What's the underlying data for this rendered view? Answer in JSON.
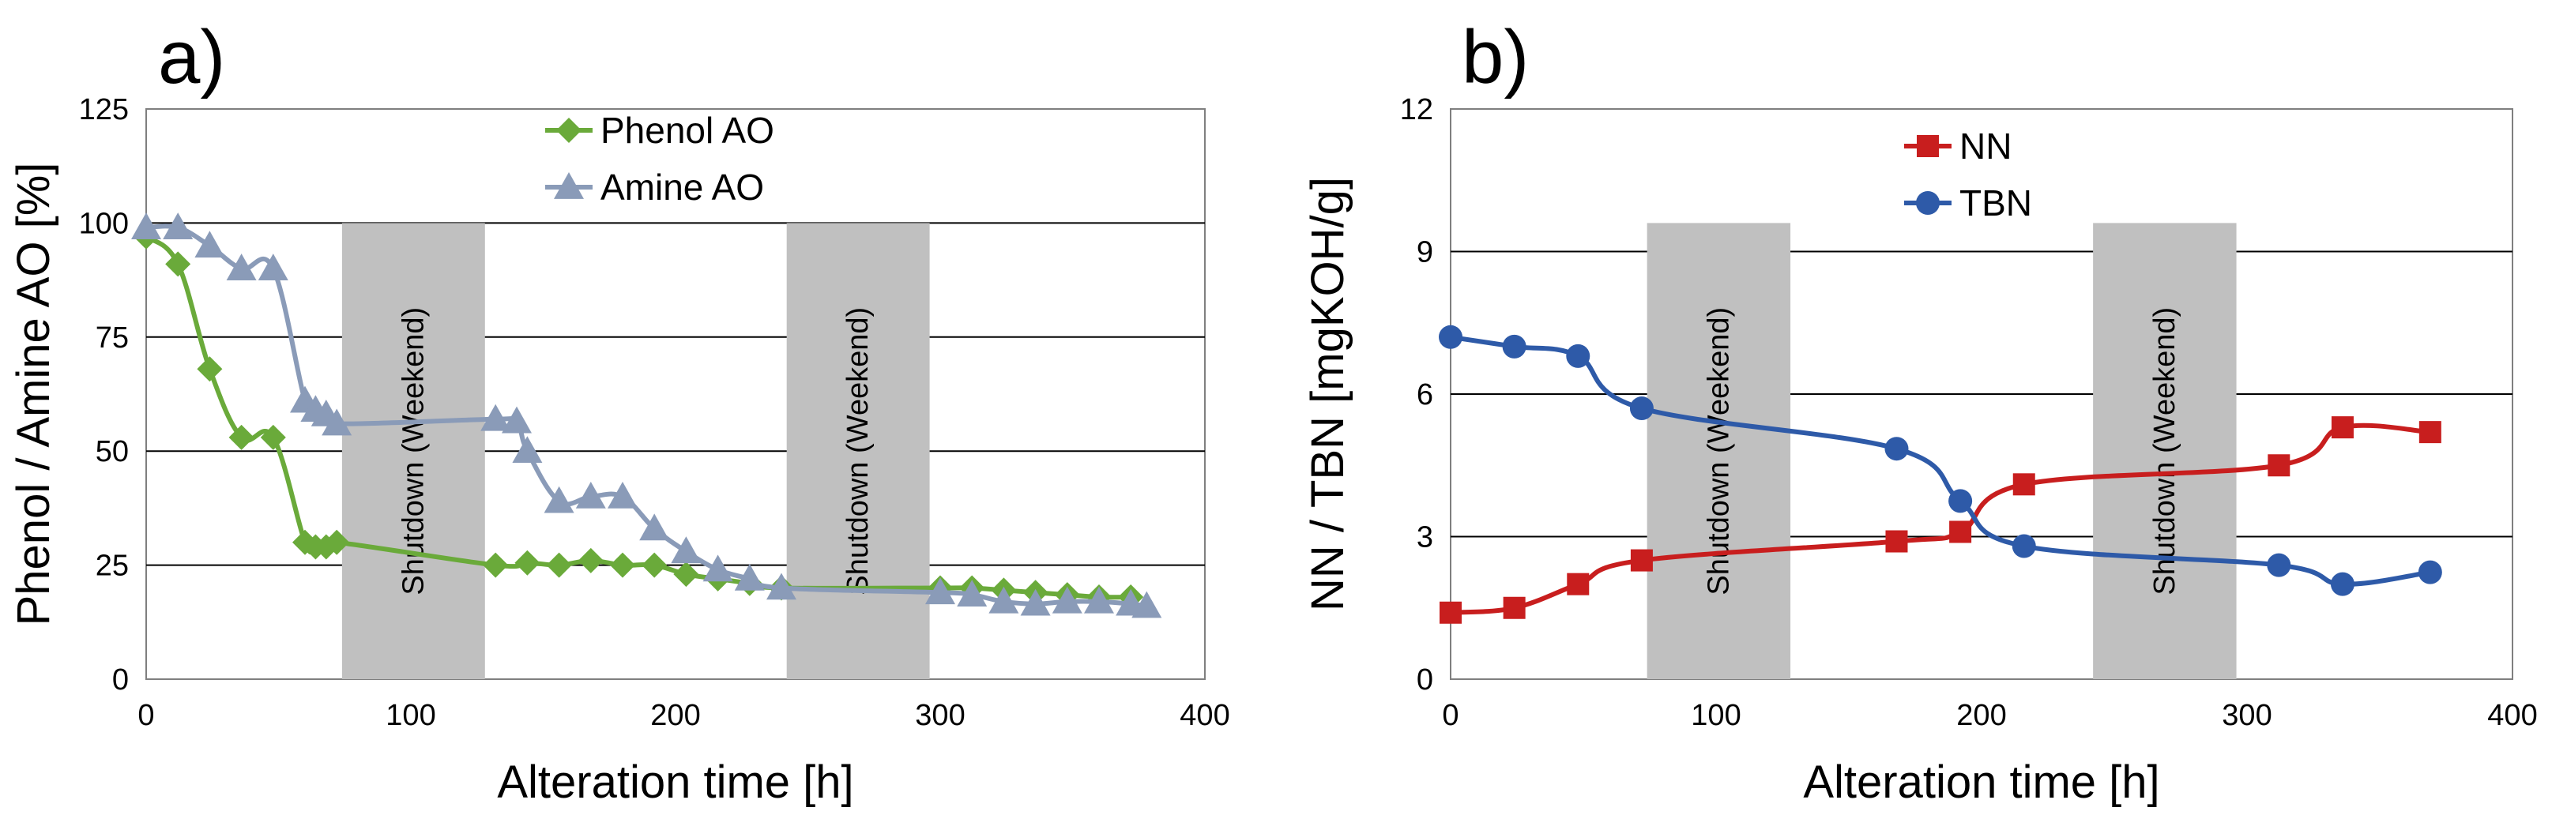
{
  "chart_data": [
    {
      "type": "line",
      "panel_label": "a)",
      "xlabel": "Alteration time [h]",
      "ylabel": "Phenol / Amine AO [%]",
      "xlim": [
        0,
        400
      ],
      "ylim": [
        0,
        125
      ],
      "xticks": [
        "0",
        "100",
        "200",
        "300",
        "400"
      ],
      "yticks": [
        "0",
        "25",
        "50",
        "75",
        "100",
        "125"
      ],
      "grid": "horizontal",
      "legend_position": "top-center",
      "shaded_regions": [
        {
          "x0": 74,
          "x1": 128,
          "label": "Shutdown (Weekend)"
        },
        {
          "x0": 242,
          "x1": 296,
          "label": "Shutdown (Weekend)"
        }
      ],
      "series": [
        {
          "name": "Phenol AO",
          "marker": "diamond",
          "color": "#6aaa3a",
          "x": [
            0,
            12,
            24,
            36,
            48,
            60,
            64,
            68,
            72,
            132,
            144,
            156,
            168,
            180,
            192,
            204,
            216,
            228,
            240,
            300,
            312,
            324,
            336,
            348,
            360,
            372
          ],
          "y": [
            97,
            91,
            68,
            53,
            53,
            30,
            29,
            29,
            30,
            25,
            25.5,
            25,
            26,
            25,
            25,
            23,
            22,
            21,
            20,
            20,
            20,
            19.5,
            19,
            18.5,
            18,
            18
          ]
        },
        {
          "name": "Amine AO",
          "marker": "triangle",
          "color": "#8a9bb8",
          "x": [
            0,
            12,
            24,
            36,
            48,
            60,
            64,
            68,
            72,
            132,
            140,
            144,
            156,
            168,
            180,
            192,
            204,
            216,
            228,
            240,
            300,
            312,
            324,
            336,
            348,
            360,
            372,
            378
          ],
          "y": [
            99,
            99,
            95,
            90,
            90,
            61,
            59,
            58,
            56,
            57,
            56.5,
            50,
            39,
            40,
            40,
            33,
            28,
            24,
            22,
            20,
            19,
            18.5,
            17,
            16.5,
            17,
            17,
            16.5,
            16
          ]
        }
      ]
    },
    {
      "type": "line",
      "panel_label": "b)",
      "xlabel": "Alteration time [h]",
      "ylabel": "NN / TBN [mgKOH/g]",
      "xlim": [
        0,
        400
      ],
      "ylim": [
        0,
        12
      ],
      "xticks": [
        "0",
        "100",
        "200",
        "300",
        "400"
      ],
      "yticks": [
        "0",
        "3",
        "6",
        "9",
        "12"
      ],
      "grid": "horizontal",
      "legend_position": "top-center",
      "shaded_regions": [
        {
          "x0": 74,
          "x1": 128,
          "label": "Shutdown (Weekend)"
        },
        {
          "x0": 242,
          "x1": 296,
          "label": "Shutdown (Weekend)"
        }
      ],
      "series": [
        {
          "name": "NN",
          "marker": "square",
          "color": "#c81e1e",
          "x": [
            0,
            24,
            48,
            72,
            168,
            192,
            216,
            312,
            336,
            369
          ],
          "y": [
            1.4,
            1.5,
            2.0,
            2.5,
            2.9,
            3.1,
            4.1,
            4.5,
            5.3,
            5.2
          ]
        },
        {
          "name": "TBN",
          "marker": "circle",
          "color": "#2e5aa8",
          "x": [
            0,
            24,
            48,
            72,
            168,
            192,
            216,
            312,
            336,
            369
          ],
          "y": [
            7.2,
            7.0,
            6.8,
            5.7,
            4.85,
            3.75,
            2.8,
            2.4,
            2.0,
            2.25
          ]
        }
      ]
    }
  ]
}
